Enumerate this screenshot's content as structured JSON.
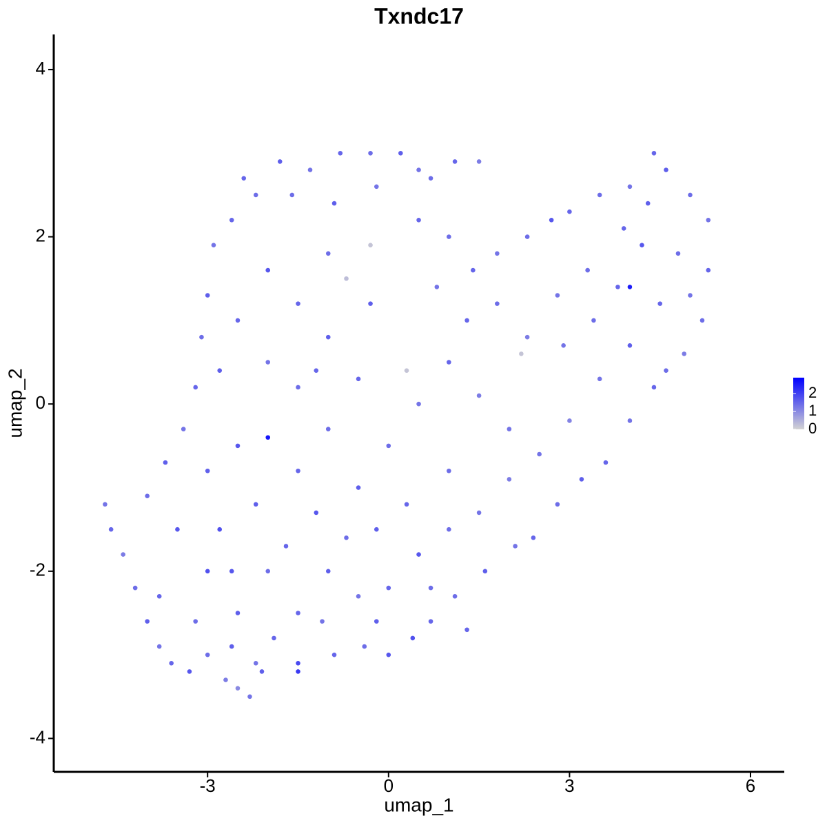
{
  "chart_data": {
    "type": "scatter",
    "title": "Txndc17",
    "x_label": "umap_1",
    "y_label": "umap_2",
    "xlim": [
      -5.55,
      6.56
    ],
    "ylim": [
      -4.4,
      4.42
    ],
    "xticks": [
      -3,
      0,
      3,
      6
    ],
    "yticks": [
      -4,
      -2,
      0,
      2,
      4
    ],
    "color_low": "#d3d3d3",
    "color_high": "#0000ff",
    "colorlim": [
      0,
      2.9
    ],
    "colorticks": [
      0,
      1,
      2
    ],
    "x": [
      -4.7,
      -4.6,
      -4.4,
      -4.2,
      -4.0,
      -3.8,
      -3.6,
      -3.3,
      -3.0,
      -2.7,
      -2.5,
      -2.3,
      -2.1,
      -1.5,
      -0.9,
      -0.4,
      0.0,
      0.4,
      0.7,
      1.1,
      1.6,
      2.1,
      2.4,
      2.8,
      3.2,
      3.6,
      4.0,
      4.4,
      4.9,
      5.2,
      5.3,
      5.3,
      5.0,
      4.6,
      4.4,
      4.0,
      3.5,
      3.0,
      2.7,
      2.3,
      1.8,
      1.5,
      1.1,
      0.5,
      0.2,
      -0.3,
      -0.8,
      -1.3,
      -1.8,
      -2.2,
      -2.6,
      -2.9,
      -3.0,
      -3.1,
      -3.2,
      -3.4,
      -3.7,
      -4.0,
      -3.5,
      -3.0,
      -2.5,
      -2.0,
      -1.5,
      -1.0,
      -0.5,
      0.0,
      0.5,
      1.0,
      1.5,
      2.0,
      2.5,
      3.0,
      3.5,
      4.0,
      4.5,
      4.8,
      4.2,
      3.8,
      3.3,
      2.8,
      2.3,
      2.2,
      1.8,
      1.3,
      0.8,
      0.3,
      -0.3,
      -0.7,
      -0.3,
      -1.0,
      -1.5,
      -2.0,
      -2.5,
      -2.0,
      -1.5,
      -1.0,
      -0.5,
      0.0,
      0.5,
      1.0,
      1.5,
      2.0,
      -2.0,
      -2.5,
      -3.0,
      -1.5,
      -1.0,
      -0.5,
      0.3,
      1.0,
      -2.8,
      -2.2,
      -1.7,
      -1.2,
      -0.7,
      -0.2,
      -3.8,
      -3.2,
      -2.6,
      -1.9,
      -1.1,
      -0.2,
      0.7,
      2.9,
      3.4,
      4.3,
      3.9,
      4.6,
      5.0,
      1.4,
      -2.4,
      -1.6,
      -0.9,
      -0.2,
      0.5,
      1.0,
      -1.2,
      -2.8,
      -2.6,
      4.0,
      1.3,
      -2.2,
      -1.5,
      0.7
    ],
    "y": [
      -1.2,
      -1.5,
      -1.8,
      -2.2,
      -2.6,
      -2.9,
      -3.1,
      -3.2,
      -3.0,
      -3.3,
      -3.4,
      -3.5,
      -3.2,
      -3.1,
      -3.0,
      -2.9,
      -3.0,
      -2.8,
      -2.6,
      -2.3,
      -2.0,
      -1.7,
      -1.6,
      -1.2,
      -0.9,
      -0.7,
      -0.2,
      0.2,
      0.6,
      1.0,
      1.6,
      2.2,
      2.5,
      2.8,
      3.0,
      2.6,
      2.5,
      2.3,
      2.2,
      2.0,
      1.8,
      2.9,
      2.9,
      2.8,
      3.0,
      3.0,
      3.0,
      2.8,
      2.9,
      2.5,
      2.2,
      1.9,
      1.3,
      0.8,
      0.2,
      -0.3,
      -0.7,
      -1.1,
      -1.5,
      -2.0,
      -2.5,
      -2.0,
      -2.5,
      -2.0,
      -2.3,
      -2.2,
      -1.8,
      -1.5,
      -1.3,
      -0.9,
      -0.6,
      -0.2,
      0.3,
      0.7,
      1.2,
      1.8,
      1.9,
      1.4,
      1.6,
      1.3,
      0.8,
      0.6,
      1.2,
      1.0,
      1.4,
      0.4,
      1.2,
      1.5,
      1.9,
      1.8,
      1.2,
      1.6,
      1.0,
      0.5,
      0.2,
      0.8,
      0.3,
      -0.5,
      0.0,
      0.5,
      0.1,
      -0.3,
      -0.4,
      -0.5,
      -0.8,
      -0.8,
      -0.3,
      -1.0,
      -1.2,
      -0.8,
      -1.5,
      -1.2,
      -1.7,
      -1.3,
      -1.6,
      -1.5,
      -2.3,
      -2.6,
      -2.9,
      -2.8,
      -2.6,
      -2.6,
      -2.2,
      0.7,
      1.0,
      2.4,
      2.1,
      0.4,
      1.3,
      1.6,
      2.7,
      2.5,
      2.4,
      2.6,
      2.2,
      2.0,
      0.4,
      0.4,
      -2.0,
      1.4,
      -2.7,
      -3.1,
      -3.2,
      2.7
    ],
    "values": [
      1.3,
      1.5,
      1.2,
      1.4,
      1.6,
      1.3,
      1.5,
      1.7,
      1.4,
      1.2,
      1.0,
      1.3,
      1.6,
      1.9,
      1.5,
      1.4,
      1.7,
      1.8,
      1.5,
      1.4,
      1.6,
      1.3,
      1.5,
      1.4,
      1.6,
      1.5,
      1.3,
      1.5,
      1.2,
      1.4,
      1.5,
      1.3,
      1.4,
      1.6,
      1.5,
      1.3,
      1.4,
      1.5,
      1.7,
      1.4,
      1.3,
      1.2,
      1.5,
      1.3,
      1.6,
      1.4,
      1.5,
      1.3,
      1.6,
      1.4,
      1.5,
      1.3,
      1.6,
      1.4,
      1.5,
      1.3,
      1.6,
      1.4,
      1.7,
      1.8,
      1.6,
      1.4,
      1.5,
      1.6,
      1.3,
      1.5,
      1.7,
      1.4,
      1.3,
      1.2,
      1.3,
      1.1,
      1.3,
      1.6,
      1.5,
      1.4,
      1.7,
      1.5,
      1.4,
      1.3,
      1.2,
      0.2,
      1.4,
      1.5,
      1.3,
      0.2,
      1.6,
      0.3,
      0.2,
      1.4,
      1.5,
      1.7,
      1.5,
      1.3,
      1.4,
      1.6,
      1.5,
      1.4,
      1.3,
      1.5,
      1.2,
      1.3,
      2.6,
      1.7,
      1.6,
      1.5,
      1.4,
      1.6,
      1.5,
      1.4,
      1.8,
      1.6,
      1.5,
      1.7,
      1.4,
      1.6,
      1.5,
      1.4,
      1.6,
      1.5,
      1.3,
      1.6,
      1.4,
      1.3,
      1.4,
      1.6,
      1.5,
      1.4,
      1.3,
      1.5,
      1.5,
      1.4,
      1.6,
      1.3,
      1.5,
      1.4,
      1.5,
      1.6,
      1.7,
      2.5,
      1.5,
      1.3,
      2.1,
      1.4
    ]
  }
}
